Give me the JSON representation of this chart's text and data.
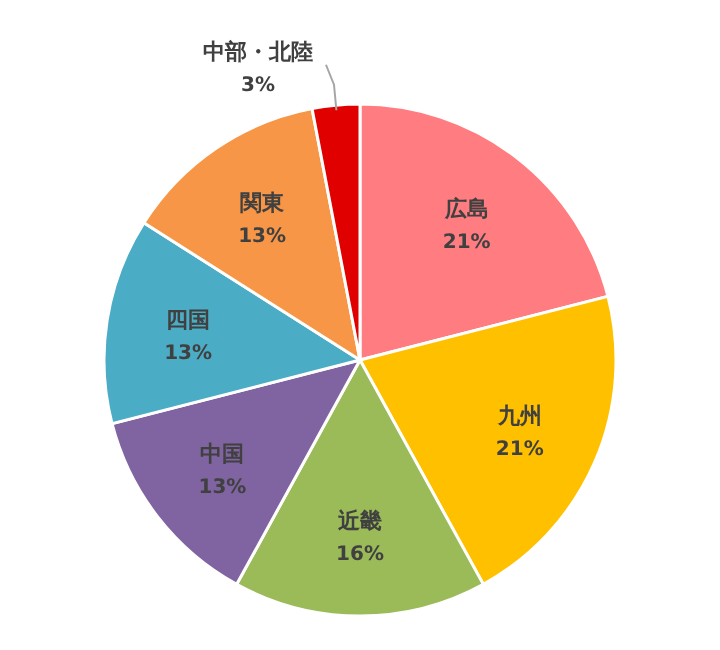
{
  "chart_data": {
    "type": "pie",
    "categories": [
      "広島",
      "九州",
      "近畿",
      "中国",
      "四国",
      "関東",
      "中部・北陸"
    ],
    "values": [
      21,
      21,
      16,
      13,
      13,
      13,
      3
    ],
    "value_labels": [
      "21%",
      "21%",
      "16%",
      "13%",
      "13%",
      "13%",
      "3%"
    ],
    "colors": [
      "#ff7c80",
      "#ffc000",
      "#9bbb59",
      "#8064a2",
      "#4bacc6",
      "#f79646",
      "#e00000"
    ],
    "legend": false
  }
}
